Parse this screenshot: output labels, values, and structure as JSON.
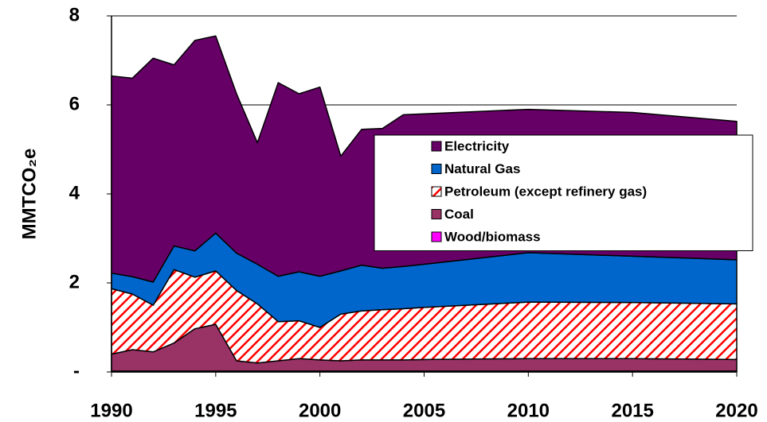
{
  "chart_data": {
    "type": "stacked-area",
    "y_label": "MMTCO₂e",
    "x": [
      1990,
      1991,
      1992,
      1993,
      1994,
      1995,
      1996,
      1997,
      1998,
      1999,
      2000,
      2001,
      2002,
      2003,
      2004,
      2005,
      2010,
      2015,
      2020
    ],
    "series": [
      {
        "name": "Wood/biomass",
        "color": "#ff00ff",
        "values": [
          0.02,
          0.02,
          0.02,
          0.02,
          0.02,
          0.02,
          0.02,
          0.02,
          0.02,
          0.02,
          0.02,
          0.02,
          0.02,
          0.02,
          0.02,
          0.02,
          0.02,
          0.02,
          0.02
        ]
      },
      {
        "name": "Coal",
        "color": "#993366",
        "values": [
          0.38,
          0.48,
          0.43,
          0.63,
          0.95,
          1.05,
          0.23,
          0.18,
          0.23,
          0.28,
          0.25,
          0.23,
          0.25,
          0.25,
          0.25,
          0.26,
          0.28,
          0.28,
          0.26
        ]
      },
      {
        "name": "Petroleum (except refinery gas)",
        "color": "#ff0000",
        "hatch": true,
        "values": [
          1.47,
          1.25,
          1.05,
          1.65,
          1.16,
          1.2,
          1.58,
          1.33,
          0.88,
          0.85,
          0.73,
          1.05,
          1.1,
          1.13,
          1.15,
          1.17,
          1.27,
          1.26,
          1.25
        ]
      },
      {
        "name": "Natural Gas",
        "color": "#0066cc",
        "values": [
          0.35,
          0.39,
          0.52,
          0.53,
          0.59,
          0.85,
          0.84,
          0.89,
          1.02,
          1.1,
          1.15,
          0.97,
          1.03,
          0.93,
          0.95,
          0.97,
          1.11,
          1.04,
          0.99
        ]
      },
      {
        "name": "Electricity",
        "color": "#660066",
        "values": [
          4.43,
          4.46,
          5.03,
          4.07,
          4.73,
          4.43,
          3.58,
          2.73,
          4.35,
          4.0,
          4.25,
          2.58,
          3.05,
          3.14,
          3.41,
          3.38,
          3.22,
          3.23,
          3.11
        ]
      }
    ],
    "xlim": [
      1990,
      2020
    ],
    "xticks": [
      1990,
      1995,
      2000,
      2005,
      2010,
      2015,
      2020
    ],
    "ylim": [
      0,
      8
    ],
    "yticks": [
      {
        "value": 0,
        "label": "-"
      },
      2,
      4,
      6,
      8
    ],
    "grid": true,
    "legend": "center-right"
  }
}
